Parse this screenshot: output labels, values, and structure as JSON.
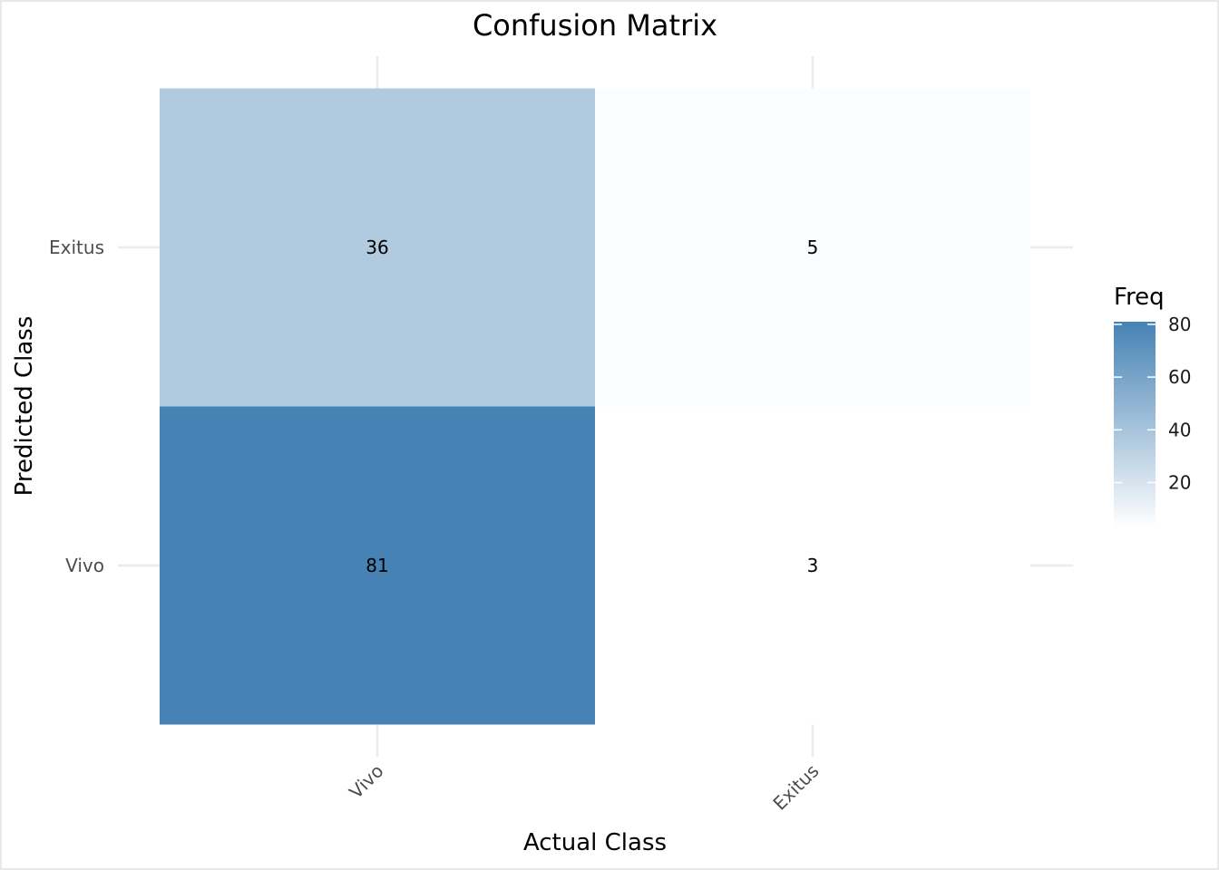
{
  "chart_data": {
    "type": "heatmap",
    "title": "Confusion Matrix",
    "xlabel": "Actual Class",
    "ylabel": "Predicted Class",
    "x_categories": [
      "Vivo",
      "Exitus"
    ],
    "y_categories": [
      "Exitus",
      "Vivo"
    ],
    "cells": [
      {
        "actual": "Vivo",
        "predicted": "Exitus",
        "value": 36
      },
      {
        "actual": "Exitus",
        "predicted": "Exitus",
        "value": 5
      },
      {
        "actual": "Vivo",
        "predicted": "Vivo",
        "value": 81
      },
      {
        "actual": "Exitus",
        "predicted": "Vivo",
        "value": 3
      }
    ],
    "legend": {
      "title": "Freq",
      "ticks": [
        20,
        40,
        60,
        80
      ],
      "range": [
        3,
        81
      ],
      "low_color": "#ffffff",
      "high_color": "#4682b4",
      "placement": "right"
    },
    "grid": true
  }
}
